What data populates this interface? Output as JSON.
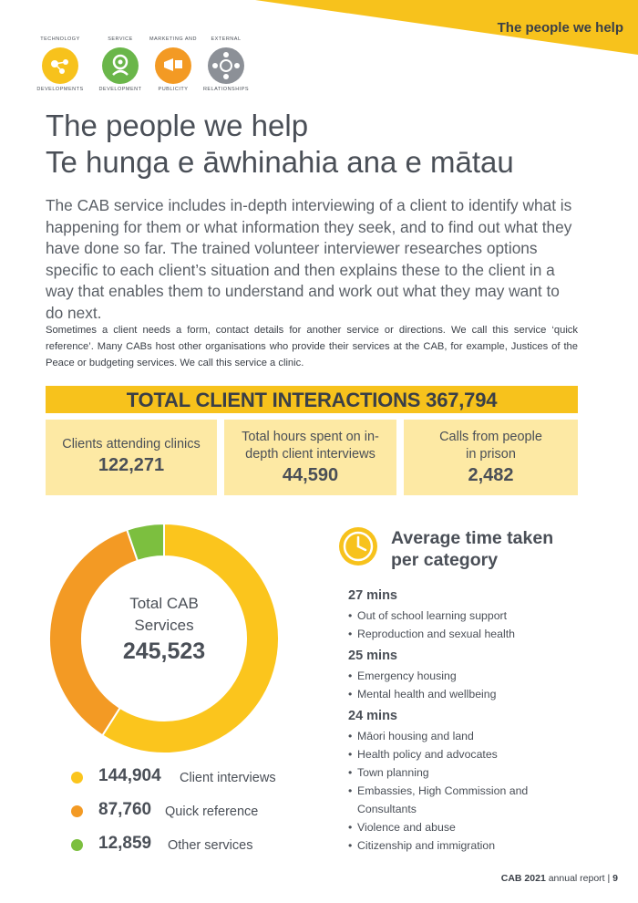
{
  "banner": {
    "title": "The people we help",
    "color": "#f7c21c"
  },
  "service_icons": [
    {
      "name": "technology-developments",
      "top": "TECHNOLOGY",
      "bottom": "DEVELOPMENTS",
      "color": "#f7c21c"
    },
    {
      "name": "service-development",
      "top": "SERVICE",
      "bottom": "DEVELOPMENT",
      "color": "#6ab64a"
    },
    {
      "name": "marketing-and-publicity",
      "top": "MARKETING AND",
      "bottom": "PUBLICITY",
      "color": "#f39a24"
    },
    {
      "name": "external-relationships",
      "top": "EXTERNAL",
      "bottom": "RELATIONSHIPS",
      "color": "#8c9097"
    }
  ],
  "heading": {
    "line1": "The people we help",
    "line2": "Te hunga e āwhinahia ana e mātau"
  },
  "lead": "The CAB service includes in-depth interviewing of a client to identify what is happening for them or what information they seek, and to find out what they have done so far. The trained volunteer interviewer researches options specific to each client’s situation and then explains these to the client in a way that enables them to understand and work out what they may want to do next.",
  "body": "Sometimes a client needs a form, contact details for another service or directions. We call this service ‘quick reference’. Many CABs host other organisations who provide their services at the CAB, for example, Justices of the Peace or budgeting services. We call this service a clinic.",
  "total": {
    "label": "TOTAL CLIENT INTERACTIONS 367,794"
  },
  "stats": [
    {
      "label": "Clients attending clinics",
      "value": "122,271"
    },
    {
      "label": "Total hours spent on in-depth client interviews",
      "value": "44,590"
    },
    {
      "label": "Calls from people in prison",
      "value": "2,482"
    }
  ],
  "chart_data": {
    "type": "pie",
    "center_label": "Total CAB Services",
    "center_value": "245,523",
    "slices": [
      {
        "label": "Client interviews",
        "value": 144904,
        "display": "144,904",
        "color": "#fbc51d"
      },
      {
        "label": "Quick reference",
        "value": 87760,
        "display": "87,760",
        "color": "#f39a24"
      },
      {
        "label": "Other services",
        "value": 12859,
        "display": "12,859",
        "color": "#7cbf3f"
      }
    ]
  },
  "average_time": {
    "heading_line1": "Average time taken",
    "heading_line2": "per category",
    "groups": [
      {
        "time": "27 mins",
        "items": [
          "Out of school learning support",
          "Reproduction and sexual health"
        ]
      },
      {
        "time": "25 mins",
        "items": [
          "Emergency housing",
          "Mental health and wellbeing"
        ]
      },
      {
        "time": "24 mins",
        "items": [
          "Māori housing and land",
          "Health policy and advocates",
          "Town planning",
          "Embassies, High Commission and Consultants",
          "Violence and abuse",
          "Citizenship and immigration"
        ]
      }
    ]
  },
  "footer": {
    "bold": "CAB 2021",
    "rest": " annual report | ",
    "page": "9"
  }
}
